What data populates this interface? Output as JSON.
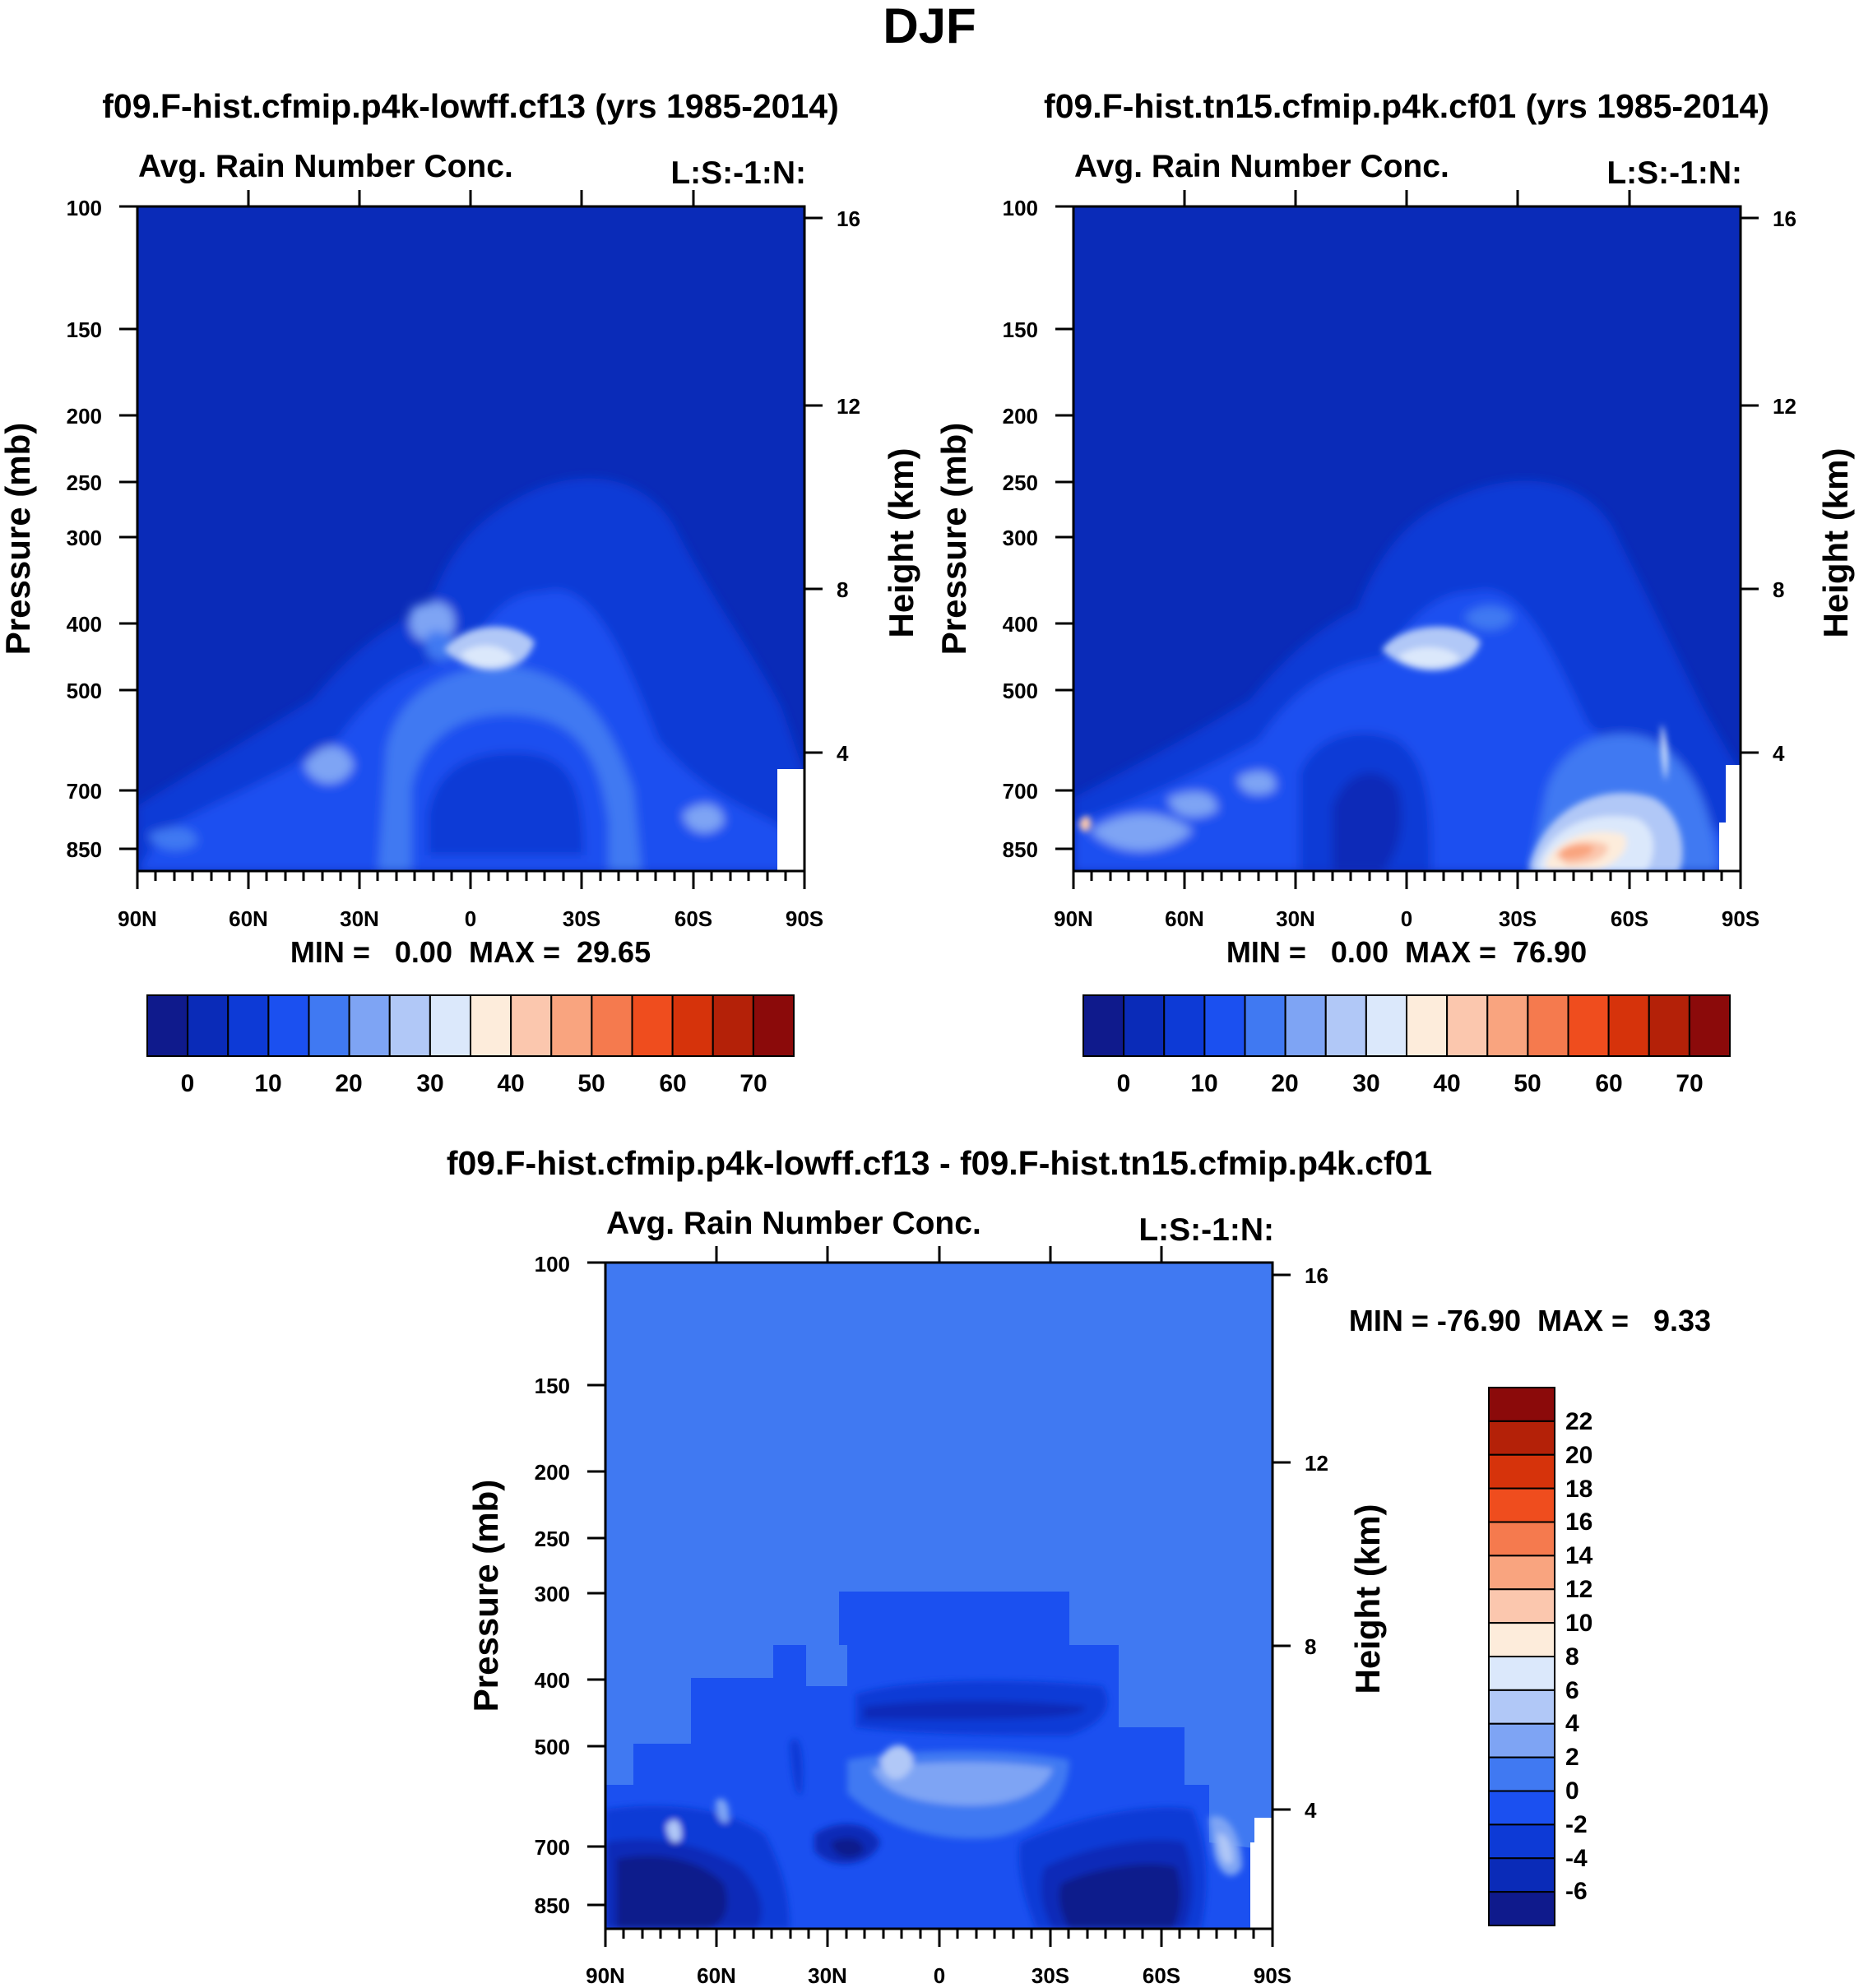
{
  "figure": {
    "title": "DJF"
  },
  "chart_data": [
    {
      "type": "heatmap",
      "title": "f09.F-hist.cfmip.p4k-lowff.cf13 (yrs 1985-2014)",
      "subtitle_left": "Avg. Rain Number Conc.",
      "subtitle_right": "L:S:-1:N:",
      "xlabel": "",
      "ylabel": "Pressure (mb)",
      "ylabel_right": "Height (km)",
      "x_ticks": [
        "90N",
        "60N",
        "30N",
        "0",
        "30S",
        "60S",
        "90S"
      ],
      "y_ticks": [
        "100",
        "150",
        "200",
        "250",
        "300",
        "400",
        "500",
        "700",
        "850"
      ],
      "y_ticks_right": [
        "16",
        "12",
        "8",
        "4"
      ],
      "stats": "MIN =   0.00  MAX =  29.65",
      "colorbar": {
        "orientation": "horizontal",
        "labels": [
          "0",
          "10",
          "20",
          "30",
          "40",
          "50",
          "60",
          "70"
        ],
        "colors": [
          "#0f1a8c",
          "#0a2bb8",
          "#0d3ad6",
          "#1b50f0",
          "#4079f2",
          "#7ea4f4",
          "#b1c8f7",
          "#dbe8fb",
          "#fdecdb",
          "#fbc7ae",
          "#f9a47f",
          "#f57a4e",
          "#ef4d1e",
          "#d6330b",
          "#b42108",
          "#8b0a0a"
        ]
      },
      "background_value": "#0a2bb8"
    },
    {
      "type": "heatmap",
      "title": "f09.F-hist.tn15.cfmip.p4k.cf01 (yrs 1985-2014)",
      "subtitle_left": "Avg. Rain Number Conc.",
      "subtitle_right": "L:S:-1:N:",
      "xlabel": "",
      "ylabel": "Pressure (mb)",
      "ylabel_right": "Height (km)",
      "x_ticks": [
        "90N",
        "60N",
        "30N",
        "0",
        "30S",
        "60S",
        "90S"
      ],
      "y_ticks": [
        "100",
        "150",
        "200",
        "250",
        "300",
        "400",
        "500",
        "700",
        "850"
      ],
      "y_ticks_right": [
        "16",
        "12",
        "8",
        "4"
      ],
      "stats": "MIN =   0.00  MAX =  76.90",
      "colorbar": {
        "orientation": "horizontal",
        "labels": [
          "0",
          "10",
          "20",
          "30",
          "40",
          "50",
          "60",
          "70"
        ],
        "colors": [
          "#0f1a8c",
          "#0a2bb8",
          "#0d3ad6",
          "#1b50f0",
          "#4079f2",
          "#7ea4f4",
          "#b1c8f7",
          "#dbe8fb",
          "#fdecdb",
          "#fbc7ae",
          "#f9a47f",
          "#f57a4e",
          "#ef4d1e",
          "#d6330b",
          "#b42108",
          "#8b0a0a"
        ]
      }
    },
    {
      "type": "heatmap",
      "title": "f09.F-hist.cfmip.p4k-lowff.cf13 - f09.F-hist.tn15.cfmip.p4k.cf01",
      "subtitle_left": "Avg. Rain Number Conc.",
      "subtitle_right": "L:S:-1:N:",
      "xlabel": "",
      "ylabel": "Pressure (mb)",
      "ylabel_right": "Height (km)",
      "x_ticks": [
        "90N",
        "60N",
        "30N",
        "0",
        "30S",
        "60S",
        "90S"
      ],
      "y_ticks": [
        "100",
        "150",
        "200",
        "250",
        "300",
        "400",
        "500",
        "700",
        "850"
      ],
      "y_ticks_right": [
        "16",
        "12",
        "8",
        "4"
      ],
      "stats": "MIN = -76.90  MAX =   9.33",
      "colorbar": {
        "orientation": "vertical",
        "labels": [
          "22",
          "20",
          "18",
          "16",
          "14",
          "12",
          "10",
          "8",
          "6",
          "4",
          "2",
          "0",
          "-2",
          "-4",
          "-6"
        ],
        "colors": [
          "#8b0a0a",
          "#b42108",
          "#d6330b",
          "#ef4d1e",
          "#f57a4e",
          "#f9a47f",
          "#fbc7ae",
          "#fdecdb",
          "#dbe8fb",
          "#b1c8f7",
          "#7ea4f4",
          "#4079f2",
          "#1b50f0",
          "#0d3ad6",
          "#0a2bb8",
          "#0f1a8c"
        ]
      }
    }
  ]
}
